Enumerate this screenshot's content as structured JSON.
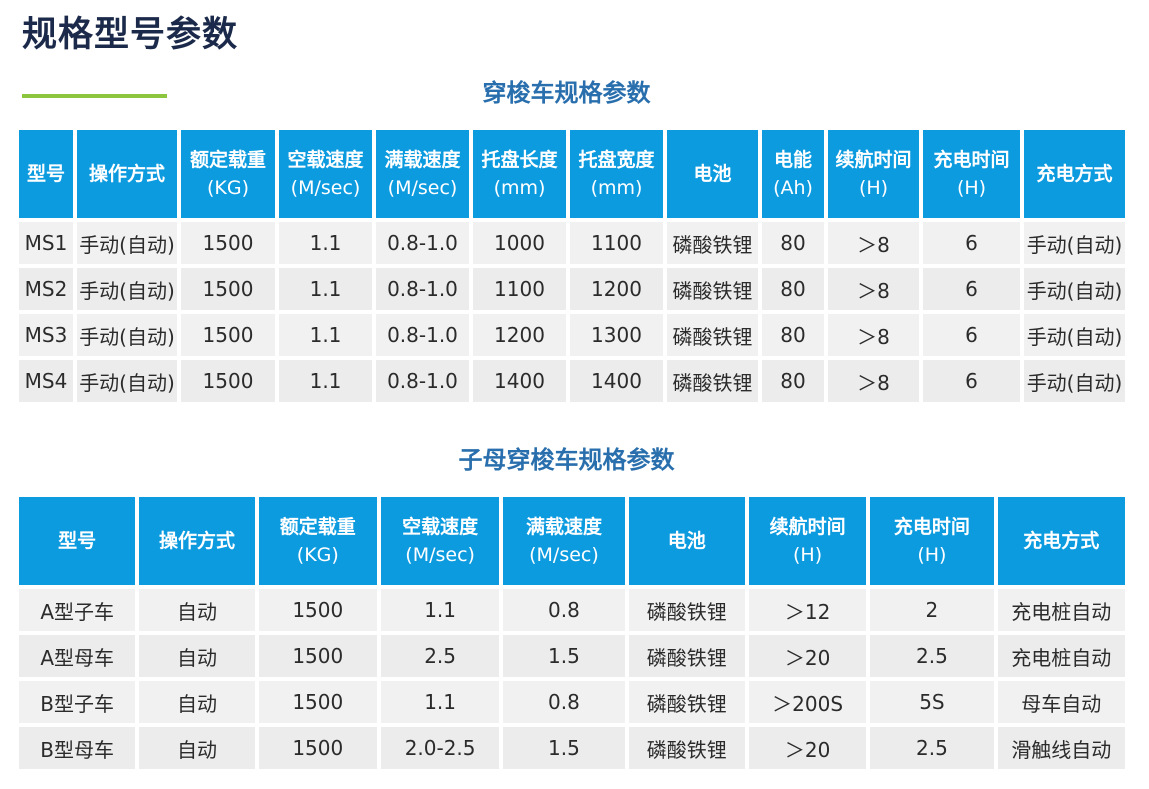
{
  "page_title": "规格型号参数",
  "table1": {
    "title": "穿梭车规格参数",
    "headers": [
      {
        "label": "型号",
        "unit": ""
      },
      {
        "label": "操作方式",
        "unit": ""
      },
      {
        "label": "额定载重",
        "unit": "(KG)"
      },
      {
        "label": "空载速度",
        "unit": "(M/sec)"
      },
      {
        "label": "满载速度",
        "unit": "(M/sec)"
      },
      {
        "label": "托盘长度",
        "unit": "(mm)"
      },
      {
        "label": "托盘宽度",
        "unit": "(mm)"
      },
      {
        "label": "电池",
        "unit": ""
      },
      {
        "label": "电能",
        "unit": "(Ah)"
      },
      {
        "label": "续航时间",
        "unit": "(H)"
      },
      {
        "label": "充电时间",
        "unit": "(H)"
      },
      {
        "label": "充电方式",
        "unit": ""
      }
    ],
    "rows": [
      [
        "MS1",
        "手动(自动)",
        "1500",
        "1.1",
        "0.8-1.0",
        "1000",
        "1100",
        "磷酸铁锂",
        "80",
        "＞8",
        "6",
        "手动(自动)"
      ],
      [
        "MS2",
        "手动(自动)",
        "1500",
        "1.1",
        "0.8-1.0",
        "1100",
        "1200",
        "磷酸铁锂",
        "80",
        "＞8",
        "6",
        "手动(自动)"
      ],
      [
        "MS3",
        "手动(自动)",
        "1500",
        "1.1",
        "0.8-1.0",
        "1200",
        "1300",
        "磷酸铁锂",
        "80",
        "＞8",
        "6",
        "手动(自动)"
      ],
      [
        "MS4",
        "手动(自动)",
        "1500",
        "1.1",
        "0.8-1.0",
        "1400",
        "1400",
        "磷酸铁锂",
        "80",
        "＞8",
        "6",
        "手动(自动)"
      ]
    ]
  },
  "table2": {
    "title": "子母穿梭车规格参数",
    "headers": [
      {
        "label": "型号",
        "unit": ""
      },
      {
        "label": "操作方式",
        "unit": ""
      },
      {
        "label": "额定载重",
        "unit": "(KG)"
      },
      {
        "label": "空载速度",
        "unit": "(M/sec)"
      },
      {
        "label": "满载速度",
        "unit": "(M/sec)"
      },
      {
        "label": "电池",
        "unit": ""
      },
      {
        "label": "续航时间",
        "unit": "(H)"
      },
      {
        "label": "充电时间",
        "unit": "(H)"
      },
      {
        "label": "充电方式",
        "unit": ""
      }
    ],
    "rows": [
      [
        "A型子车",
        "自动",
        "1500",
        "1.1",
        "0.8",
        "磷酸铁锂",
        "＞12",
        "2",
        "充电桩自动"
      ],
      [
        "A型母车",
        "自动",
        "1500",
        "2.5",
        "1.5",
        "磷酸铁锂",
        "＞20",
        "2.5",
        "充电桩自动"
      ],
      [
        "B型子车",
        "自动",
        "1500",
        "1.1",
        "0.8",
        "磷酸铁锂",
        "＞200S",
        "5S",
        "母车自动"
      ],
      [
        "B型母车",
        "自动",
        "1500",
        "2.0-2.5",
        "1.5",
        "磷酸铁锂",
        "＞20",
        "2.5",
        "滑触线自动"
      ]
    ]
  },
  "colors": {
    "header_bg": "#0d9be0",
    "title_text": "#1b2a4a",
    "subtitle_text": "#2a6fad",
    "accent_line": "#8cc63f",
    "cell_bg": "#f0f0f0"
  }
}
